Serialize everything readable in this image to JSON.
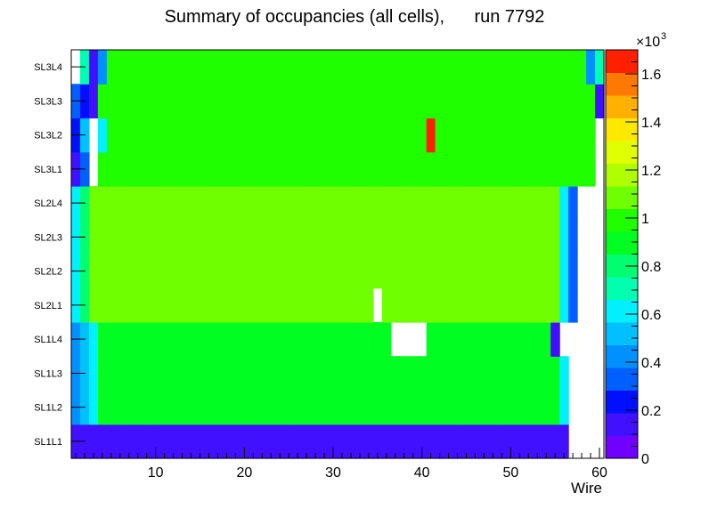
{
  "chart_data": {
    "type": "heatmap",
    "title": "Summary of occupancies (all cells),      run 7792",
    "xlabel": "Wire",
    "ylabel": "",
    "xlim": [
      0.5,
      60.5
    ],
    "x_ticks": [
      10,
      20,
      30,
      40,
      50,
      60
    ],
    "y_categories": [
      "SL1L1",
      "SL1L2",
      "SL1L3",
      "SL1L4",
      "SL2L1",
      "SL2L2",
      "SL2L3",
      "SL2L4",
      "SL3L1",
      "SL3L2",
      "SL3L3",
      "SL3L4"
    ],
    "colorbar": {
      "min": 0,
      "max": 1.7,
      "multiplier": "×10",
      "exponent": "3",
      "tick_values": [
        0,
        0.2,
        0.4,
        0.6,
        0.8,
        1,
        1.2,
        1.4,
        1.6
      ],
      "tick_labels": [
        "0",
        "0.2",
        "0.4",
        "0.6",
        "0.8",
        "1",
        "1.2",
        "1.4",
        "1.6"
      ],
      "palette": [
        "#7000ff",
        "#4010ff",
        "#0010ff",
        "#0060ff",
        "#0090ff",
        "#00c0ff",
        "#00f0ff",
        "#00ffb0",
        "#00ff70",
        "#00ff20",
        "#20ff00",
        "#70ff00",
        "#b0ff00",
        "#e0ff00",
        "#ffe800",
        "#ffb000",
        "#ff7800",
        "#ff2000"
      ]
    },
    "rows": [
      {
        "layer": "SL1L1",
        "values": [
          0.15,
          0.15,
          0.15,
          0.15,
          0.15,
          0.15,
          0.15,
          0.15,
          0.15,
          0.15,
          0.15,
          0.15,
          0.15,
          0.15,
          0.15,
          0.15,
          0.15,
          0.15,
          0.15,
          0.15,
          0.15,
          0.15,
          0.15,
          0.15,
          0.15,
          0.15,
          0.15,
          0.15,
          0.15,
          0.15,
          0.15,
          0.15,
          0.15,
          0.15,
          0.15,
          0.15,
          0.15,
          0.15,
          0.15,
          0.15,
          0.15,
          0.15,
          0.15,
          0.15,
          0.15,
          0.15,
          0.15,
          0.15,
          0.15,
          0.15,
          0.15,
          0.15,
          0.15,
          0.15,
          0.15,
          0.15,
          null,
          null,
          null,
          null
        ]
      },
      {
        "layer": "SL1L2",
        "values": [
          0.4,
          0.5,
          0.6,
          0.85,
          0.85,
          0.85,
          0.85,
          0.85,
          0.85,
          0.85,
          0.85,
          0.85,
          0.85,
          0.85,
          0.85,
          0.85,
          0.85,
          0.85,
          0.85,
          0.85,
          0.85,
          0.85,
          0.85,
          0.85,
          0.85,
          0.85,
          0.85,
          0.85,
          0.85,
          0.85,
          0.85,
          0.85,
          0.85,
          0.85,
          0.85,
          0.85,
          0.85,
          0.85,
          0.85,
          0.85,
          0.85,
          0.85,
          0.85,
          0.85,
          0.85,
          0.85,
          0.85,
          0.85,
          0.85,
          0.85,
          0.85,
          0.85,
          0.85,
          0.85,
          0.85,
          0.6,
          null,
          null,
          null,
          null
        ]
      },
      {
        "layer": "SL1L3",
        "values": [
          0.4,
          0.5,
          0.6,
          0.85,
          0.85,
          0.85,
          0.85,
          0.85,
          0.85,
          0.85,
          0.85,
          0.85,
          0.85,
          0.85,
          0.85,
          0.85,
          0.85,
          0.85,
          0.85,
          0.85,
          0.85,
          0.85,
          0.85,
          0.85,
          0.85,
          0.85,
          0.85,
          0.85,
          0.85,
          0.85,
          0.85,
          0.85,
          0.85,
          0.85,
          0.85,
          0.85,
          0.85,
          0.85,
          0.85,
          0.85,
          0.85,
          0.85,
          0.85,
          0.85,
          0.85,
          0.85,
          0.85,
          0.85,
          0.85,
          0.85,
          0.85,
          0.85,
          0.85,
          0.85,
          0.85,
          0.6,
          null,
          null,
          null,
          null
        ]
      },
      {
        "layer": "SL1L4",
        "values": [
          0.4,
          0.5,
          0.6,
          0.85,
          0.85,
          0.85,
          0.85,
          0.85,
          0.85,
          0.85,
          0.85,
          0.85,
          0.85,
          0.85,
          0.85,
          0.85,
          0.85,
          0.85,
          0.85,
          0.85,
          0.85,
          0.85,
          0.85,
          0.85,
          0.85,
          0.85,
          0.85,
          0.85,
          0.85,
          0.85,
          0.85,
          0.85,
          0.85,
          0.85,
          0.85,
          0.85,
          null,
          null,
          null,
          null,
          0.85,
          0.85,
          0.85,
          0.85,
          0.85,
          0.85,
          0.85,
          0.85,
          0.85,
          0.85,
          0.85,
          0.85,
          0.85,
          0.85,
          0.15,
          null,
          null,
          null,
          null,
          null
        ]
      },
      {
        "layer": "SL2L1",
        "values": [
          0.6,
          0.8,
          1.1,
          1.1,
          1.1,
          1.1,
          1.1,
          1.1,
          1.1,
          1.1,
          1.1,
          1.1,
          1.1,
          1.1,
          1.1,
          1.1,
          1.1,
          1.1,
          1.1,
          1.1,
          1.1,
          1.1,
          1.1,
          1.1,
          1.1,
          1.1,
          1.1,
          1.1,
          1.1,
          1.1,
          1.1,
          1.1,
          1.1,
          1.1,
          null,
          1.1,
          1.1,
          1.1,
          1.1,
          1.1,
          1.1,
          1.1,
          1.1,
          1.1,
          1.1,
          1.1,
          1.1,
          1.1,
          1.1,
          1.1,
          1.1,
          1.1,
          1.1,
          1.1,
          1.1,
          0.6,
          0.3,
          null,
          null,
          null
        ]
      },
      {
        "layer": "SL2L2",
        "values": [
          0.6,
          0.8,
          1.1,
          1.1,
          1.1,
          1.1,
          1.1,
          1.1,
          1.1,
          1.1,
          1.1,
          1.1,
          1.1,
          1.1,
          1.1,
          1.1,
          1.1,
          1.1,
          1.1,
          1.1,
          1.1,
          1.1,
          1.1,
          1.1,
          1.1,
          1.1,
          1.1,
          1.1,
          1.1,
          1.1,
          1.1,
          1.1,
          1.1,
          1.1,
          1.1,
          1.1,
          1.1,
          1.1,
          1.1,
          1.1,
          1.1,
          1.1,
          1.1,
          1.1,
          1.1,
          1.1,
          1.1,
          1.1,
          1.1,
          1.1,
          1.1,
          1.1,
          1.1,
          1.1,
          1.1,
          0.6,
          0.3,
          null,
          null,
          null
        ]
      },
      {
        "layer": "SL2L3",
        "values": [
          0.6,
          0.8,
          1.1,
          1.1,
          1.1,
          1.1,
          1.1,
          1.1,
          1.1,
          1.1,
          1.1,
          1.1,
          1.1,
          1.1,
          1.1,
          1.1,
          1.1,
          1.1,
          1.1,
          1.1,
          1.1,
          1.1,
          1.1,
          1.1,
          1.1,
          1.1,
          1.1,
          1.1,
          1.1,
          1.1,
          1.1,
          1.1,
          1.1,
          1.1,
          1.1,
          1.1,
          1.1,
          1.1,
          1.1,
          1.1,
          1.1,
          1.1,
          1.1,
          1.1,
          1.1,
          1.1,
          1.1,
          1.1,
          1.1,
          1.1,
          1.1,
          1.1,
          1.1,
          1.1,
          1.1,
          0.6,
          0.3,
          null,
          null,
          null
        ]
      },
      {
        "layer": "SL2L4",
        "values": [
          0.6,
          0.8,
          1.1,
          1.1,
          1.1,
          1.1,
          1.1,
          1.1,
          1.1,
          1.1,
          1.1,
          1.1,
          1.1,
          1.1,
          1.1,
          1.1,
          1.1,
          1.1,
          1.1,
          1.1,
          1.1,
          1.1,
          1.1,
          1.1,
          1.1,
          1.1,
          1.1,
          1.1,
          1.1,
          1.1,
          1.1,
          1.1,
          1.1,
          1.1,
          1.1,
          1.1,
          1.1,
          1.1,
          1.1,
          1.1,
          1.1,
          1.1,
          1.1,
          1.1,
          1.1,
          1.1,
          1.1,
          1.1,
          1.1,
          1.1,
          1.1,
          1.1,
          1.1,
          1.1,
          1.1,
          0.6,
          0.3,
          null,
          null,
          null
        ]
      },
      {
        "layer": "SL3L1",
        "values": [
          0.15,
          0.3,
          null,
          1.0,
          1.0,
          1.0,
          1.0,
          1.0,
          1.0,
          1.0,
          1.0,
          1.0,
          1.0,
          1.0,
          1.0,
          1.0,
          1.0,
          1.0,
          1.0,
          1.0,
          1.0,
          1.0,
          1.0,
          1.0,
          1.0,
          1.0,
          1.0,
          1.0,
          1.0,
          1.0,
          1.0,
          1.0,
          1.0,
          1.0,
          1.0,
          1.0,
          1.0,
          1.0,
          1.0,
          1.0,
          1.0,
          1.0,
          1.0,
          1.0,
          1.0,
          1.0,
          1.0,
          1.0,
          1.0,
          1.0,
          1.0,
          1.0,
          1.0,
          1.0,
          1.0,
          1.0,
          1.0,
          1.0,
          1.0,
          null
        ]
      },
      {
        "layer": "SL3L2",
        "values": [
          0.2,
          0.5,
          null,
          0.6,
          1.0,
          1.0,
          1.0,
          1.0,
          1.0,
          1.0,
          1.0,
          1.0,
          1.0,
          1.0,
          1.0,
          1.0,
          1.0,
          1.0,
          1.0,
          1.0,
          1.0,
          1.0,
          1.0,
          1.0,
          1.0,
          1.0,
          1.0,
          1.0,
          1.0,
          1.0,
          1.0,
          1.0,
          1.0,
          1.0,
          1.0,
          1.0,
          1.0,
          1.0,
          1.0,
          1.0,
          1.7,
          1.0,
          1.0,
          1.0,
          1.0,
          1.0,
          1.0,
          1.0,
          1.0,
          1.0,
          1.0,
          1.0,
          1.0,
          1.0,
          1.0,
          1.0,
          1.0,
          1.0,
          1.0,
          null
        ]
      },
      {
        "layer": "SL3L3",
        "values": [
          0.3,
          0.2,
          0.15,
          1.0,
          1.0,
          1.0,
          1.0,
          1.0,
          1.0,
          1.0,
          1.0,
          1.0,
          1.0,
          1.0,
          1.0,
          1.0,
          1.0,
          1.0,
          1.0,
          1.0,
          1.0,
          1.0,
          1.0,
          1.0,
          1.0,
          1.0,
          1.0,
          1.0,
          1.0,
          1.0,
          1.0,
          1.0,
          1.0,
          1.0,
          1.0,
          1.0,
          1.0,
          1.0,
          1.0,
          1.0,
          1.0,
          1.0,
          1.0,
          1.0,
          1.0,
          1.0,
          1.0,
          1.0,
          1.0,
          1.0,
          1.0,
          1.0,
          1.0,
          1.0,
          1.0,
          1.0,
          1.0,
          1.0,
          1.0,
          0.15
        ]
      },
      {
        "layer": "SL3L4",
        "values": [
          null,
          0.7,
          0.15,
          0.4,
          1.0,
          1.0,
          1.0,
          1.0,
          1.0,
          1.0,
          1.0,
          1.0,
          1.0,
          1.0,
          1.0,
          1.0,
          1.0,
          1.0,
          1.0,
          1.0,
          1.0,
          1.0,
          1.0,
          1.0,
          1.0,
          1.0,
          1.0,
          1.0,
          1.0,
          1.0,
          1.0,
          1.0,
          1.0,
          1.0,
          1.0,
          1.0,
          1.0,
          1.0,
          1.0,
          1.0,
          1.0,
          1.0,
          1.0,
          1.0,
          1.0,
          1.0,
          1.0,
          1.0,
          1.0,
          1.0,
          1.0,
          1.0,
          1.0,
          1.0,
          1.0,
          1.0,
          1.0,
          1.0,
          0.4,
          0.7
        ]
      }
    ]
  }
}
